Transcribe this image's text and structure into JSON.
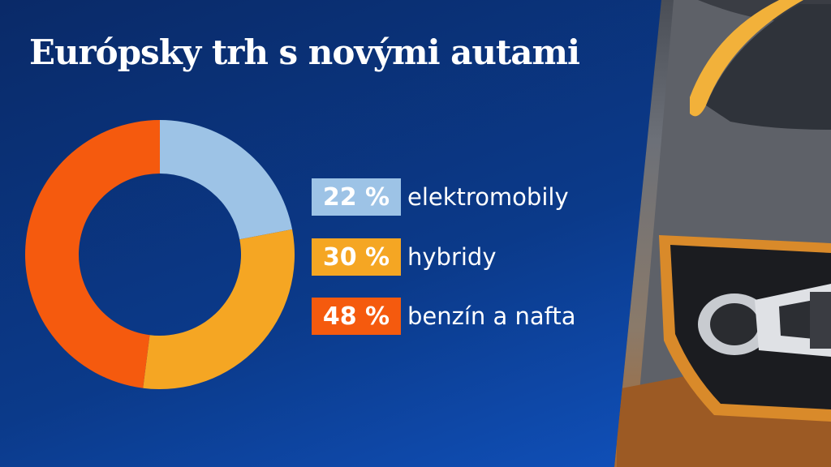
{
  "title": "Európsky trh s novými autami",
  "chart_data": {
    "type": "pie",
    "title": "Európsky trh s novými autami",
    "unit": "%",
    "slices": [
      {
        "label": "elektromobily",
        "value": 22,
        "display": "22 %",
        "color": "#9dc3e6"
      },
      {
        "label": "hybridy",
        "value": 30,
        "display": "30 %",
        "color": "#f5a623"
      },
      {
        "label": "benzín a nafta",
        "value": 48,
        "display": "48 %",
        "color": "#f55a0e"
      }
    ]
  },
  "colors": {
    "background": "#0b3a8a",
    "title_text": "#ffffff"
  },
  "photo": {
    "subject": "electric-car-charging-port"
  }
}
